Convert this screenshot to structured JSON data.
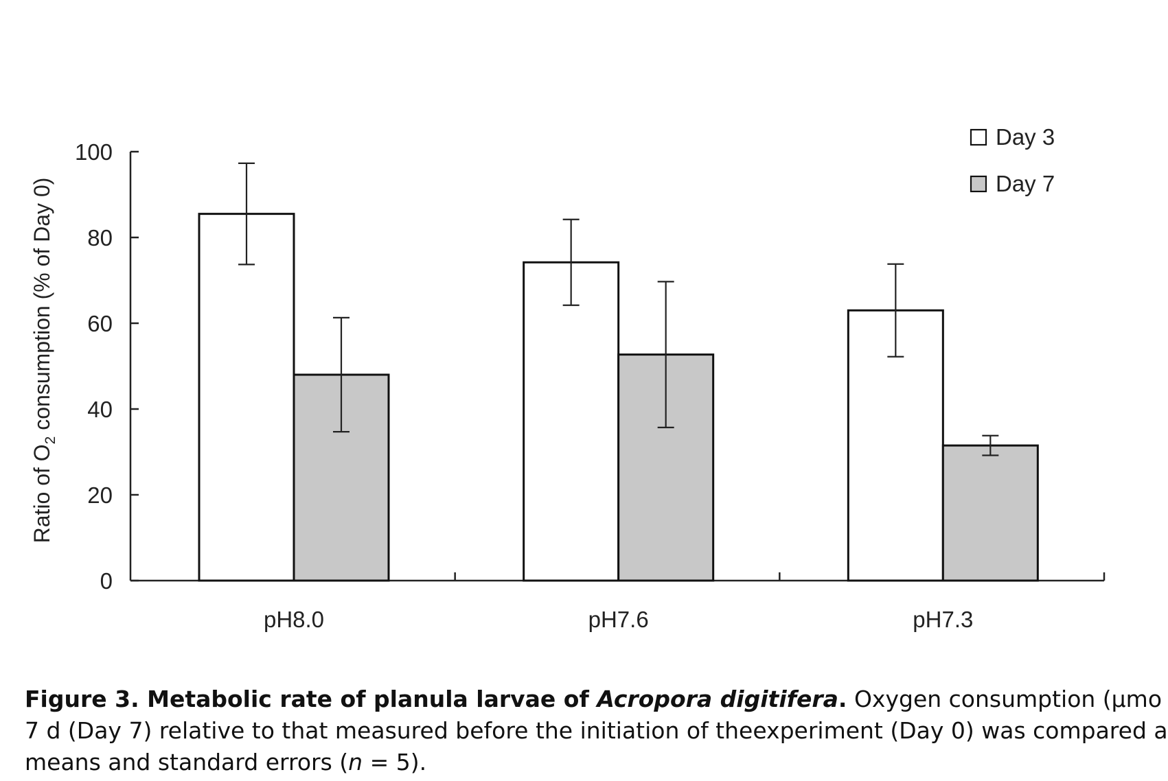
{
  "chart_data": {
    "type": "bar",
    "categories": [
      "pH8.0",
      "pH7.6",
      "pH7.3"
    ],
    "series": [
      {
        "name": "Day 3",
        "values": [
          85.5,
          74.2,
          63.0
        ],
        "errors": [
          11.8,
          10.0,
          10.8
        ],
        "color": "#ffffff"
      },
      {
        "name": "Day 7",
        "values": [
          48.0,
          52.7,
          31.5
        ],
        "errors": [
          13.3,
          17.0,
          2.3
        ],
        "color": "#c8c8c8"
      }
    ],
    "ylabel_pre": "Ratio of O",
    "ylabel_sub": "2",
    "ylabel_post": " consumption (% of Day 0)",
    "ylim": [
      0,
      100
    ],
    "yticks": [
      0,
      20,
      40,
      60,
      80,
      100
    ],
    "yticks_labels": [
      "0",
      "20",
      "40",
      "60",
      "80",
      "100"
    ],
    "legend_position": "top-right",
    "grid": false
  },
  "caption": {
    "figure_label": "Figure 3. Metabolic rate of planula larvae of ",
    "species": "Acropora digitifera",
    "bold_period": ".",
    "text_1": " Oxygen consumption (μmo",
    "line_2": "7 d (Day 7) relative to that measured before the initiation of theexperiment (Day 0) was compared a",
    "line_3_pre": "means and standard errors (",
    "n_var": "n",
    "line_3_post": " = 5)."
  }
}
